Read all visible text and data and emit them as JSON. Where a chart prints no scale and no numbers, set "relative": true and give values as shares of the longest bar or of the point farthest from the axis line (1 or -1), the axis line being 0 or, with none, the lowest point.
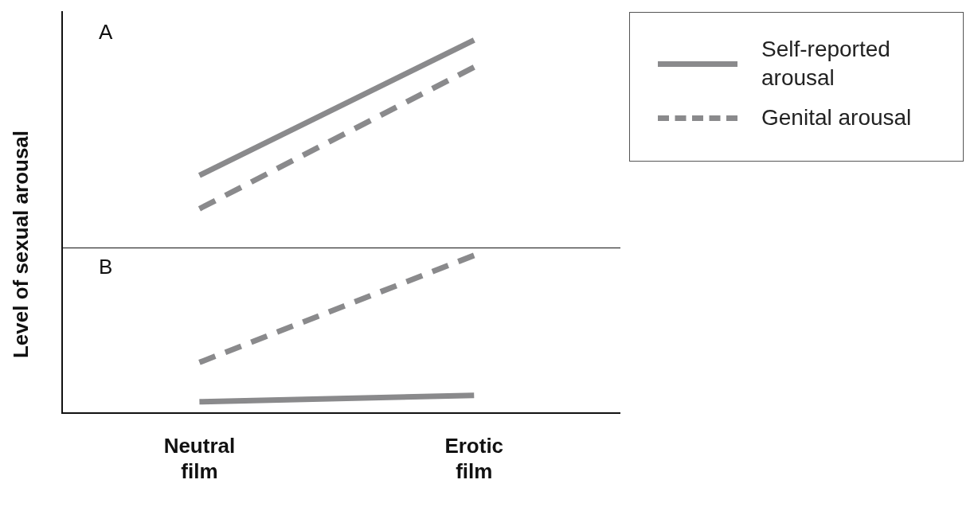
{
  "chart_data": [
    {
      "type": "line",
      "title": "A",
      "ylabel": "Level of sexual arousal",
      "relative": true,
      "legend": "top right",
      "tick_labels": false,
      "series": [
        {
          "name": "Self-reported arousal",
          "color": "#8a8a8c",
          "values": [
            0.35,
            1
          ],
          "line_style": "solid"
        },
        {
          "name": "Genital arousal",
          "color": "#8a8a8c",
          "values": [
            0.19,
            0.87
          ],
          "line_style": "dashed"
        }
      ]
    },
    {
      "type": "line",
      "title": "B",
      "categories": [
        "Neutral film",
        "Erotic film"
      ],
      "relative": true,
      "tick_labels": "x",
      "series": [
        {
          "color": "#8a8a8c",
          "values": [
            0.07,
            0.11
          ],
          "line_style": "solid"
        },
        {
          "color": "#8a8a8c",
          "values": [
            0.32,
            1
          ],
          "line_style": "dashed"
        }
      ]
    }
  ]
}
